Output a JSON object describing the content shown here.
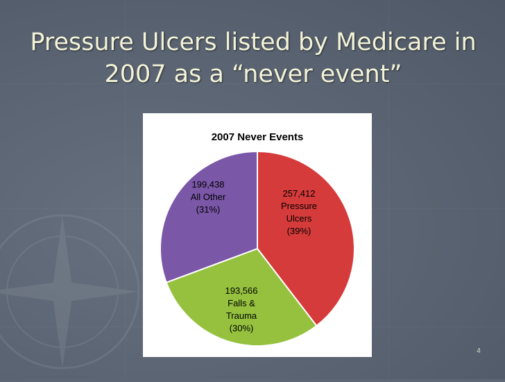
{
  "slide": {
    "title_line1": "Pressure Ulcers listed by Medicare in",
    "title_line2": "2007 as a “never event”",
    "page_number": "4"
  },
  "chart_data": {
    "type": "pie",
    "title": "2007 Never Events",
    "slices": [
      {
        "lines": [
          "257,412",
          "Pressure",
          "Ulcers",
          "(39%)"
        ],
        "value": 257412,
        "percent": 39,
        "color": "#d63b3b"
      },
      {
        "lines": [
          "193,566",
          "Falls &",
          "Trauma",
          "(30%)"
        ],
        "value": 193566,
        "percent": 30,
        "color": "#95c13f"
      },
      {
        "lines": [
          "199,438",
          "All Other",
          "(31%)"
        ],
        "value": 199438,
        "percent": 31,
        "color": "#7b57a8"
      }
    ],
    "legend": "none"
  }
}
